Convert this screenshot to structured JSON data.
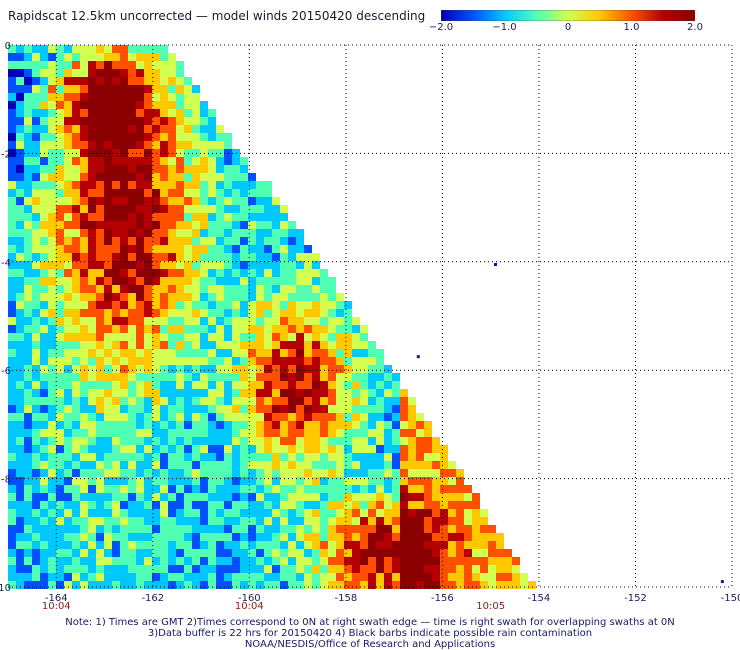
{
  "title": "Rapidscat 12.5km uncorrected — model winds 20150420 descending",
  "colorbar": {
    "colors": [
      "#0000b4",
      "#0050ff",
      "#00c8ff",
      "#50ffb4",
      "#d2ff50",
      "#ffc800",
      "#ff5000",
      "#b40000",
      "#8b0000"
    ],
    "labels": [
      "−2.0",
      "−1.0",
      "0",
      "1.0",
      "2.0"
    ],
    "ticks": [
      -2.0,
      -1.0,
      0,
      1.0,
      2.0
    ],
    "range": [
      -2.0,
      2.0
    ]
  },
  "axes": {
    "lon_range": [
      -165,
      -150
    ],
    "lat_range": [
      -10,
      0
    ],
    "x_ticks": [
      -164,
      -162,
      -160,
      -158,
      -156,
      -154,
      -152,
      -150
    ],
    "x_tick_labels": [
      "-164",
      "-162",
      "-160",
      "-158",
      "-156",
      "-154",
      "-152",
      "-150"
    ],
    "y_ticks": [
      0,
      -2,
      -4,
      -6,
      -8,
      -10
    ],
    "y_tick_labels": [
      "0",
      "-2",
      "-4",
      "-6",
      "-8",
      "-10"
    ],
    "grid": true
  },
  "time_labels": [
    {
      "lon": -164,
      "text": "10:04"
    },
    {
      "lon": -160,
      "text": "10:04"
    },
    {
      "lon": -155,
      "text": "10:05"
    }
  ],
  "swath": {
    "edge_top_lon": -161.5,
    "edge_bottom_lon": -154.1
  },
  "notes": {
    "line1": "Note: 1) Times are GMT 2)Times correspond to 0N at right swath edge — time is right swath for overlapping swaths at 0N",
    "line2": "3)Data buffer is 22 hrs for 20150420 4) Black barbs indicate possible rain contamination",
    "line3": "NOAA/NESDIS/Office of Research and Applications"
  }
}
